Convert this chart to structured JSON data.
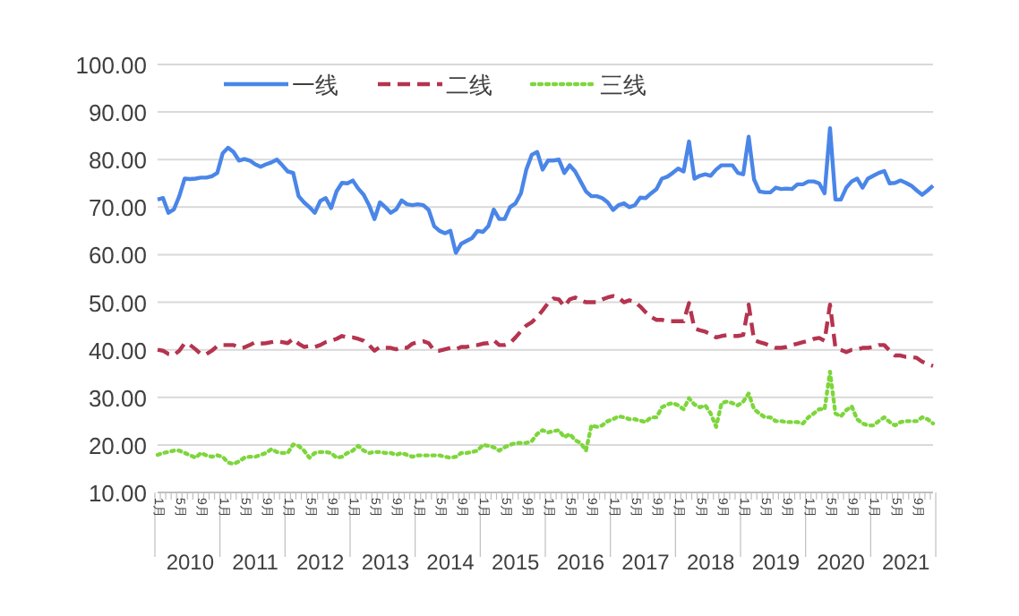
{
  "chart_data": {
    "type": "line",
    "categories": [
      "1月",
      null,
      null,
      null,
      "5月",
      null,
      null,
      null,
      "9月",
      null,
      null,
      null,
      "1月",
      null,
      null,
      null,
      "5月",
      null,
      null,
      null,
      "9月",
      null,
      null,
      null,
      "1月",
      null,
      null,
      null,
      "5月",
      null,
      null,
      null,
      "9月",
      null,
      null,
      null,
      "1月",
      null,
      null,
      null,
      "5月",
      null,
      null,
      null,
      "9月",
      null,
      null,
      null,
      "1月",
      null,
      null,
      null,
      "5月",
      null,
      null,
      null,
      "9月",
      null,
      null,
      null,
      "1月",
      null,
      null,
      null,
      "5月",
      null,
      null,
      null,
      "9月",
      null,
      null,
      null,
      "1月",
      null,
      null,
      null,
      "5月",
      null,
      null,
      null,
      "9月",
      null,
      null,
      null,
      "1月",
      null,
      null,
      null,
      "5月",
      null,
      null,
      null,
      "9月",
      null,
      null,
      null,
      "1月",
      null,
      null,
      null,
      "5月",
      null,
      null,
      null,
      "9月",
      null,
      null,
      null,
      "1月",
      null,
      null,
      null,
      "5月",
      null,
      null,
      null,
      "9月",
      null,
      null,
      null,
      "1月",
      null,
      null,
      null,
      "5月",
      null,
      null,
      null,
      "9月",
      null,
      null,
      null,
      "1月",
      null,
      null,
      null,
      "5月",
      null,
      null,
      null,
      "9月",
      null,
      null,
      null
    ],
    "series": [
      {
        "name": "一线",
        "color": "#4a86e8",
        "line_style": "solid",
        "values": [
          71.6,
          71.9,
          68.8,
          69.5,
          72.3,
          76,
          75.9,
          76,
          76.2,
          76.2,
          76.5,
          77.2,
          81.3,
          82.5,
          81.6,
          79.8,
          80.1,
          79.8,
          79,
          78.5,
          79,
          79.4,
          80,
          78.8,
          77.5,
          77.2,
          72.3,
          71,
          70,
          68.8,
          71.3,
          71.9,
          69.8,
          73.3,
          75.1,
          75,
          75.6,
          73.9,
          72.6,
          70.4,
          67.5,
          71,
          70,
          68.8,
          69.5,
          71.4,
          70.6,
          70.4,
          70.6,
          70.4,
          69.4,
          66,
          65,
          64.5,
          65,
          60.4,
          62.3,
          62.9,
          63.5,
          65,
          64.8,
          66,
          69.5,
          67.5,
          67.5,
          70,
          70.8,
          72.9,
          77.9,
          81,
          81.6,
          77.9,
          79.8,
          79.8,
          80,
          77.2,
          78.8,
          77.5,
          75.4,
          73.3,
          72.3,
          72.3,
          71.9,
          71,
          69.4,
          70.4,
          70.8,
          70,
          70.4,
          72,
          71.9,
          72.9,
          73.8,
          76,
          76.4,
          77.2,
          78.1,
          77.5,
          83.8,
          76,
          76.6,
          76.9,
          76.6,
          77.9,
          78.8,
          78.8,
          78.8,
          77.2,
          76.9,
          84.8,
          75.8,
          73.3,
          73.1,
          73.1,
          74.1,
          73.8,
          73.9,
          73.8,
          74.8,
          74.8,
          75.4,
          75.4,
          75,
          72.9,
          86.6,
          71.6,
          71.6,
          74.1,
          75.4,
          76,
          74.1,
          76,
          76.6,
          77.2,
          77.6,
          75,
          75.1,
          75.6,
          75.1,
          74.5,
          73.5,
          72.6,
          73.5,
          74.5
        ]
      },
      {
        "name": "二线",
        "color": "#b5344f",
        "line_style": "dashed",
        "values": [
          40,
          39.8,
          39.1,
          38.9,
          39.8,
          41.4,
          41,
          40.1,
          39.1,
          39.1,
          39.8,
          40.8,
          41,
          41,
          41,
          40.4,
          40.5,
          41,
          41.6,
          41.3,
          41.4,
          41.6,
          41.8,
          41.6,
          41.4,
          42.3,
          41.3,
          40.6,
          40.8,
          40.6,
          41,
          41.6,
          41.9,
          42.3,
          42.9,
          42.6,
          42.6,
          42.3,
          41.9,
          41,
          39.8,
          40.6,
          40.4,
          40.4,
          40.1,
          40.6,
          40.4,
          41.3,
          41.6,
          41.8,
          41.4,
          39.8,
          39.8,
          40.1,
          40.4,
          40.1,
          40.6,
          40.6,
          41,
          41,
          41.3,
          41.4,
          42,
          41,
          41,
          41.4,
          42.6,
          43.9,
          45.1,
          45.8,
          46.9,
          48.3,
          49.8,
          50.8,
          50.6,
          49.1,
          50.6,
          51,
          50.4,
          50,
          50,
          50,
          50.6,
          51,
          51.3,
          51,
          50,
          50.4,
          50.1,
          49.1,
          47.9,
          46.9,
          46.3,
          46.3,
          46,
          46,
          46,
          46,
          49.8,
          44.5,
          44.1,
          43.8,
          43.3,
          42.6,
          42.9,
          43.1,
          42.9,
          42.9,
          43.1,
          49.5,
          42,
          41.6,
          41.3,
          40.8,
          40.4,
          40.4,
          40.6,
          41,
          41.3,
          41.6,
          41.9,
          42.3,
          42.5,
          41.9,
          49.5,
          40.4,
          40,
          39.5,
          40,
          40.1,
          40.4,
          40.4,
          40.6,
          41,
          41,
          39.8,
          38.8,
          38.8,
          38.5,
          38.5,
          38.3,
          37.5,
          37,
          36.6
        ]
      },
      {
        "name": "三线",
        "color": "#7dd63c",
        "line_style": "dotted",
        "values": [
          17.9,
          18.3,
          18.5,
          18.8,
          18.8,
          18.3,
          17.8,
          17.3,
          18.3,
          17.8,
          17.5,
          17.8,
          17.5,
          16.3,
          16,
          16.5,
          17.3,
          17.5,
          17.5,
          17.9,
          18.3,
          19.1,
          18.5,
          18.3,
          18.3,
          20.1,
          19.8,
          18.8,
          17.3,
          18.3,
          18.5,
          18.5,
          18.3,
          17.3,
          17.5,
          18.3,
          18.8,
          19.8,
          18.8,
          18.3,
          18.5,
          18.5,
          18.3,
          18.3,
          17.9,
          18.3,
          17.9,
          17.5,
          17.8,
          17.8,
          17.8,
          17.8,
          17.8,
          17.5,
          17.3,
          17.5,
          18.3,
          18.3,
          18.5,
          18.8,
          20,
          19.8,
          19.5,
          18.8,
          19.5,
          20,
          20.4,
          20.4,
          20.4,
          20.8,
          22.3,
          23.1,
          22.6,
          22.9,
          23.1,
          21.6,
          22.3,
          21,
          20.4,
          18.8,
          24.1,
          23.8,
          24.1,
          25,
          25.4,
          26,
          25.8,
          25.4,
          25.4,
          25.1,
          24.8,
          25.8,
          25.8,
          27.9,
          28.5,
          28.8,
          28.3,
          27.5,
          29.8,
          28.5,
          27.9,
          28.3,
          26.6,
          23.8,
          28.8,
          29.1,
          28.8,
          28.3,
          29.1,
          30.8,
          27.5,
          26.6,
          25.8,
          25.8,
          25,
          25,
          24.8,
          24.8,
          24.8,
          24.5,
          25.8,
          26.6,
          27.5,
          27.5,
          35.4,
          26.6,
          26,
          27.3,
          28.1,
          25.4,
          24.5,
          24.1,
          24.1,
          25,
          25.8,
          24.8,
          24.1,
          24.8,
          25,
          25,
          25,
          25.8,
          25.4,
          24.5
        ]
      }
    ],
    "ylim": [
      10,
      100
    ],
    "yticks": [
      {
        "value": 10,
        "label": "10.00"
      },
      {
        "value": 20,
        "label": "20.00"
      },
      {
        "value": 30,
        "label": "30.00"
      },
      {
        "value": 40,
        "label": "40.00"
      },
      {
        "value": 50,
        "label": "50.00"
      },
      {
        "value": 60,
        "label": "60.00"
      },
      {
        "value": 70,
        "label": "70.00"
      },
      {
        "value": 80,
        "label": "80.00"
      },
      {
        "value": 90,
        "label": "90.00"
      },
      {
        "value": 100,
        "label": "100.00"
      }
    ],
    "grid": "y",
    "legend": "top",
    "annotations": [
      "2010",
      "2011",
      "2012",
      "2013",
      "2014",
      "2015",
      "2016",
      "2017",
      "2018",
      "2019",
      "2020",
      "2021"
    ]
  }
}
